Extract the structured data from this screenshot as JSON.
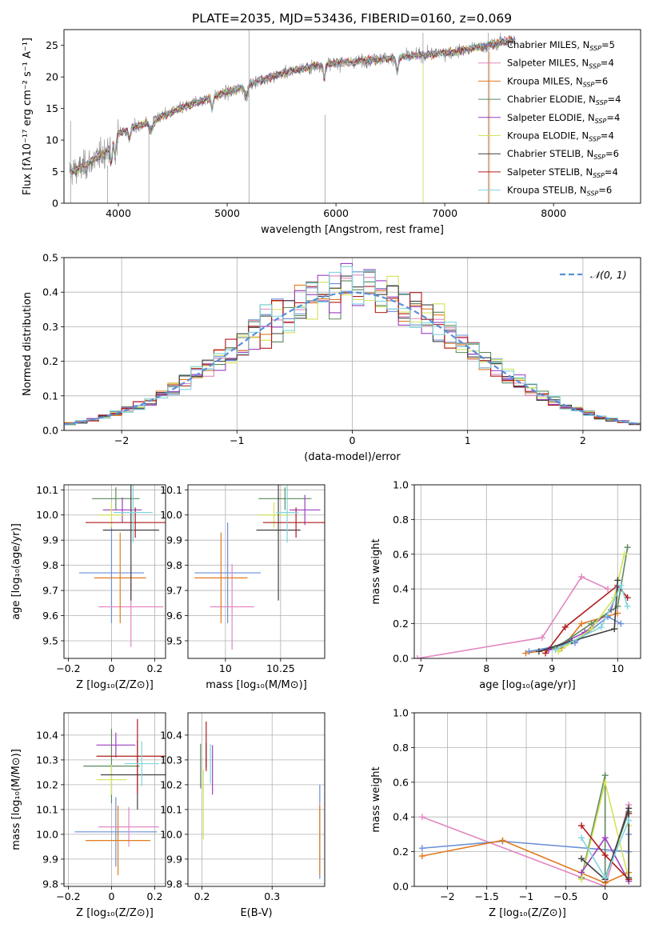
{
  "figure_title": "PLATE=2035, MJD=53436, FIBERID=0160, z=0.069",
  "colors": {
    "Chabrier MILES": "#6a8fd8",
    "Salpeter MILES": "#e287c0",
    "Kroupa MILES": "#e07b1f",
    "Chabrier ELODIE": "#5c8a5c",
    "Salpeter ELODIE": "#9b3fc0",
    "Kroupa ELODIE": "#d4e25a",
    "Chabrier STELIB": "#404040",
    "Salpeter STELIB": "#b01c1c",
    "Kroupa STELIB": "#7ed6dd",
    "data": "#7f7f7f",
    "gaussian": "#5b8ed8"
  },
  "chart_data": [
    {
      "id": "spectrum",
      "type": "line",
      "title": "PLATE=2035, MJD=53436, FIBERID=0160, z=0.069",
      "xlabel": "wavelength [Angstrom, rest frame]",
      "ylabel": "Flux [fλ10⁻¹⁷ erg cm⁻² s⁻¹ A⁻¹]",
      "xlim": [
        3500,
        8800
      ],
      "ylim": [
        0,
        27.5
      ],
      "xticks": [
        4000,
        5000,
        6000,
        7000,
        8000
      ],
      "yticks": [
        0,
        5,
        10,
        15,
        20,
        25
      ],
      "grid": false,
      "legend_position": "upper-right",
      "legend": [
        {
          "name": "Chabrier MILES",
          "sub": "SSP",
          "n": "5"
        },
        {
          "name": "Salpeter MILES",
          "sub": "SSP",
          "n": "4"
        },
        {
          "name": "Kroupa MILES",
          "sub": "SSP",
          "n": "6"
        },
        {
          "name": "Chabrier ELODIE",
          "sub": "SSP",
          "n": "4"
        },
        {
          "name": "Salpeter ELODIE",
          "sub": "SSP",
          "n": "4"
        },
        {
          "name": "Kroupa ELODIE",
          "sub": "SSP",
          "n": "4"
        },
        {
          "name": "Chabrier STELIB",
          "sub": "SSP",
          "n": "6"
        },
        {
          "name": "Salpeter STELIB",
          "sub": "SSP",
          "n": "4"
        },
        {
          "name": "Kroupa STELIB",
          "sub": "SSP",
          "n": "6"
        }
      ],
      "continuum_anchors": {
        "x": [
          3550,
          3650,
          3750,
          3900,
          4000,
          4100,
          4300,
          4500,
          4800,
          5000,
          5300,
          5600,
          5900,
          6200,
          6500,
          6800,
          7100,
          7400,
          7600
        ],
        "y": [
          5.0,
          5.5,
          6.5,
          8.5,
          11.0,
          11.8,
          13.0,
          14.5,
          16.5,
          17.5,
          19.5,
          21.0,
          22.0,
          22.5,
          23.0,
          23.5,
          24.0,
          25.0,
          25.8
        ]
      }
    },
    {
      "id": "residuals",
      "type": "histogram",
      "xlabel": "(data-model)/error",
      "ylabel": "Normed distribution",
      "xlim": [
        -2.5,
        2.5
      ],
      "ylim": [
        0,
        0.5
      ],
      "xticks": [
        -2,
        -1,
        0,
        1,
        2
      ],
      "yticks": [
        0.0,
        0.1,
        0.2,
        0.3,
        0.4,
        0.5
      ],
      "grid": true,
      "legend_position": "upper-right",
      "legend": [
        "𝒩(0, 1)"
      ],
      "bin_width": 0.1,
      "bin_start": -2.5
    },
    {
      "id": "age-vs-Z",
      "type": "errorbar",
      "xlabel": "Z [log₁₀(Z/Z⊙)]",
      "ylabel": "age [log₁₀(age/yr)]",
      "xlim": [
        -0.22,
        0.25
      ],
      "ylim": [
        9.43,
        10.12
      ],
      "xticks": [
        -0.2,
        0.0,
        0.2
      ],
      "yticks": [
        9.5,
        9.6,
        9.7,
        9.8,
        9.9,
        10.0,
        10.1
      ],
      "grid": true,
      "points": [
        {
          "model": "Chabrier MILES",
          "x": 0.0,
          "xerr": 0.15,
          "y": 9.77,
          "yerr": 0.2
        },
        {
          "model": "Salpeter MILES",
          "x": 0.09,
          "xerr": 0.15,
          "y": 9.635,
          "yerr": 0.16
        },
        {
          "model": "Kroupa MILES",
          "x": 0.04,
          "xerr": 0.12,
          "y": 9.75,
          "yerr": 0.18
        },
        {
          "model": "Chabrier ELODIE",
          "x": 0.02,
          "xerr": 0.11,
          "y": 10.065,
          "yerr": 0.045
        },
        {
          "model": "Salpeter ELODIE",
          "x": 0.05,
          "xerr": 0.09,
          "y": 10.02,
          "yerr": 0.05
        },
        {
          "model": "Kroupa ELODIE",
          "x": 0.0,
          "xerr": 0.06,
          "y": 10.0,
          "yerr": 0.05
        },
        {
          "model": "Chabrier STELIB",
          "x": 0.09,
          "xerr": 0.13,
          "y": 9.94,
          "yerr": 0.28
        },
        {
          "model": "Salpeter STELIB",
          "x": 0.11,
          "xerr": 0.23,
          "y": 9.97,
          "yerr": 0.06
        },
        {
          "model": "Kroupa STELIB",
          "x": 0.1,
          "xerr": 0.09,
          "y": 10.01,
          "yerr": 0.12
        }
      ]
    },
    {
      "id": "age-vs-mass",
      "type": "errorbar",
      "xlabel": "mass [log₁₀(M/M⊙)]",
      "ylabel": "",
      "xlim": [
        9.83,
        10.45
      ],
      "ylim": [
        9.43,
        10.12
      ],
      "xticks": [
        10.0,
        10.25
      ],
      "yticks": [
        9.5,
        9.6,
        9.7,
        9.8,
        9.9,
        10.0,
        10.1
      ],
      "grid": true,
      "points": [
        {
          "model": "Chabrier MILES",
          "x": 10.01,
          "xerr": 0.15,
          "y": 9.77,
          "yerr": 0.2
        },
        {
          "model": "Salpeter MILES",
          "x": 10.03,
          "xerr": 0.1,
          "y": 9.635,
          "yerr": 0.17
        },
        {
          "model": "Kroupa MILES",
          "x": 9.98,
          "xerr": 0.12,
          "y": 9.75,
          "yerr": 0.18
        },
        {
          "model": "Chabrier ELODIE",
          "x": 10.27,
          "xerr": 0.12,
          "y": 10.065,
          "yerr": 0.045
        },
        {
          "model": "Salpeter ELODIE",
          "x": 10.36,
          "xerr": 0.07,
          "y": 10.02,
          "yerr": 0.06
        },
        {
          "model": "Kroupa ELODIE",
          "x": 10.22,
          "xerr": 0.07,
          "y": 10.0,
          "yerr": 0.05
        },
        {
          "model": "Chabrier STELIB",
          "x": 10.24,
          "xerr": 0.1,
          "y": 9.94,
          "yerr": 0.28
        },
        {
          "model": "Salpeter STELIB",
          "x": 10.32,
          "xerr": 0.15,
          "y": 9.97,
          "yerr": 0.06
        },
        {
          "model": "Kroupa STELIB",
          "x": 10.28,
          "xerr": 0.05,
          "y": 10.01,
          "yerr": 0.12
        }
      ]
    },
    {
      "id": "weight-vs-age",
      "type": "line",
      "xlabel": "age [log₁₀(age/yr)]",
      "ylabel": "mass weight",
      "xlim": [
        6.9,
        10.35
      ],
      "ylim": [
        0,
        1.0
      ],
      "xticks": [
        7,
        8,
        9,
        10
      ],
      "yticks": [
        0.0,
        0.2,
        0.4,
        0.6,
        0.8,
        1.0
      ],
      "grid": true,
      "series": [
        {
          "model": "Salpeter MILES",
          "x": [
            6.95,
            8.85,
            9.45,
            9.85
          ],
          "y": [
            0.0,
            0.12,
            0.47,
            0.4
          ]
        },
        {
          "model": "Kroupa MILES",
          "x": [
            8.6,
            9.15,
            9.45,
            10.0
          ],
          "y": [
            0.03,
            0.06,
            0.2,
            0.26
          ]
        },
        {
          "model": "Chabrier MILES",
          "x": [
            8.65,
            9.35,
            9.85,
            10.05
          ],
          "y": [
            0.04,
            0.09,
            0.24,
            0.2
          ]
        },
        {
          "model": "Salpeter STELIB",
          "x": [
            8.9,
            9.2,
            10.0,
            10.15
          ],
          "y": [
            0.03,
            0.18,
            0.42,
            0.35
          ]
        },
        {
          "model": "Salpeter ELODIE",
          "x": [
            8.95,
            9.5,
            9.9,
            10.0
          ],
          "y": [
            0.05,
            0.15,
            0.28,
            0.41
          ]
        },
        {
          "model": "Chabrier ELODIE",
          "x": [
            9.05,
            9.6,
            10.0,
            10.15
          ],
          "y": [
            0.06,
            0.2,
            0.3,
            0.64
          ]
        },
        {
          "model": "Kroupa ELODIE",
          "x": [
            9.1,
            9.6,
            9.95,
            10.1
          ],
          "y": [
            0.04,
            0.17,
            0.35,
            0.6
          ]
        },
        {
          "model": "Chabrier STELIB",
          "x": [
            8.8,
            9.3,
            9.95,
            10.0
          ],
          "y": [
            0.04,
            0.1,
            0.17,
            0.45
          ]
        },
        {
          "model": "Kroupa STELIB",
          "x": [
            9.05,
            9.75,
            10.05,
            10.15
          ],
          "y": [
            0.05,
            0.18,
            0.42,
            0.3
          ]
        }
      ]
    },
    {
      "id": "mass-vs-Z",
      "type": "errorbar",
      "xlabel": "Z [log₁₀(Z/Z⊙)]",
      "ylabel": "mass [log₁₀(M/M⊙)]",
      "xlim": [
        -0.22,
        0.25
      ],
      "ylim": [
        9.79,
        10.49
      ],
      "xticks": [
        -0.2,
        0.0,
        0.2
      ],
      "yticks": [
        9.8,
        9.9,
        10.0,
        10.1,
        10.2,
        10.3,
        10.4
      ],
      "grid": true,
      "points": [
        {
          "model": "Chabrier MILES",
          "x": 0.02,
          "xerr": 0.19,
          "y": 10.01,
          "yerr": 0.14
        },
        {
          "model": "Salpeter MILES",
          "x": 0.08,
          "xerr": 0.14,
          "y": 10.03,
          "yerr": 0.08
        },
        {
          "model": "Kroupa MILES",
          "x": 0.03,
          "xerr": 0.15,
          "y": 9.975,
          "yerr": 0.14
        },
        {
          "model": "Chabrier ELODIE",
          "x": 0.0,
          "xerr": 0.13,
          "y": 10.275,
          "yerr": 0.15
        },
        {
          "model": "Salpeter ELODIE",
          "x": 0.02,
          "xerr": 0.09,
          "y": 10.36,
          "yerr": 0.05
        },
        {
          "model": "Kroupa ELODIE",
          "x": 0.0,
          "xerr": 0.07,
          "y": 10.22,
          "yerr": 0.06
        },
        {
          "model": "Chabrier STELIB",
          "x": 0.12,
          "xerr": 0.17,
          "y": 10.24,
          "yerr": 0.14
        },
        {
          "model": "Salpeter STELIB",
          "x": 0.12,
          "xerr": 0.19,
          "y": 10.315,
          "yerr": 0.15
        },
        {
          "model": "Kroupa STELIB",
          "x": 0.14,
          "xerr": 0.08,
          "y": 10.285,
          "yerr": 0.09
        }
      ]
    },
    {
      "id": "mass-vs-ebv",
      "type": "errorbar",
      "xlabel": "E(B-V)",
      "ylabel": "",
      "xlim": [
        0.18,
        0.375
      ],
      "ylim": [
        9.79,
        10.49
      ],
      "xticks": [
        0.2,
        0.3
      ],
      "yticks": [
        9.8,
        9.9,
        10.0,
        10.1,
        10.2,
        10.3,
        10.4
      ],
      "grid": true,
      "points": [
        {
          "model": "Chabrier MILES",
          "x": 0.368,
          "xerr": 0,
          "y": 10.01,
          "yerr": 0.19
        },
        {
          "model": "Salpeter MILES",
          "x": 0.368,
          "xerr": 0,
          "y": 10.03,
          "yerr": 0.1
        },
        {
          "model": "Kroupa MILES",
          "x": 0.368,
          "xerr": 0,
          "y": 9.975,
          "yerr": 0.14
        },
        {
          "model": "Chabrier ELODIE",
          "x": 0.198,
          "xerr": 0,
          "y": 10.275,
          "yerr": 0.09
        },
        {
          "model": "Salpeter ELODIE",
          "x": 0.215,
          "xerr": 0,
          "y": 10.26,
          "yerr": 0.1
        },
        {
          "model": "Kroupa ELODIE",
          "x": 0.202,
          "xerr": 0,
          "y": 10.12,
          "yerr": 0.14
        },
        {
          "model": "Chabrier STELIB",
          "x": 0.206,
          "xerr": 0,
          "y": 10.32,
          "yerr": 0.05
        },
        {
          "model": "Salpeter STELIB",
          "x": 0.206,
          "xerr": 0,
          "y": 10.355,
          "yerr": 0.1
        },
        {
          "model": "Kroupa STELIB",
          "x": 0.212,
          "xerr": 0,
          "y": 10.285,
          "yerr": 0.08
        }
      ]
    },
    {
      "id": "weight-vs-Z",
      "type": "line",
      "xlabel": "Z [log₁₀(Z/Z⊙)]",
      "ylabel": "mass weight",
      "xlim": [
        -2.42,
        0.45
      ],
      "ylim": [
        0,
        1.0
      ],
      "xticks": [
        -2.0,
        -1.5,
        -1.0,
        -0.5,
        0.0
      ],
      "yticks": [
        0.0,
        0.2,
        0.4,
        0.6,
        0.8,
        1.0
      ],
      "grid": true,
      "series": [
        {
          "model": "Salpeter MILES",
          "x": [
            -2.32,
            0.0,
            0.3,
            0.3
          ],
          "y": [
            0.4,
            0.0,
            0.47,
            0.04
          ]
        },
        {
          "model": "Chabrier MILES",
          "x": [
            -2.32,
            -1.3,
            0.3,
            0.3
          ],
          "y": [
            0.22,
            0.26,
            0.2,
            0.3
          ]
        },
        {
          "model": "Kroupa MILES",
          "x": [
            -2.32,
            -1.3,
            0.0,
            0.3
          ],
          "y": [
            0.175,
            0.265,
            0.02,
            0.08
          ]
        },
        {
          "model": "Chabrier ELODIE",
          "x": [
            -0.3,
            0.0,
            0.0,
            0.3
          ],
          "y": [
            0.05,
            0.64,
            0.05,
            0.43
          ]
        },
        {
          "model": "Kroupa ELODIE",
          "x": [
            -0.3,
            0.0,
            0.3,
            0.3
          ],
          "y": [
            0.04,
            0.6,
            0.04,
            0.35
          ]
        },
        {
          "model": "Salpeter ELODIE",
          "x": [
            -0.3,
            0.0,
            0.3
          ],
          "y": [
            0.08,
            0.28,
            0.03
          ]
        },
        {
          "model": "Salpeter STELIB",
          "x": [
            -0.3,
            0.0,
            0.3,
            0.3
          ],
          "y": [
            0.35,
            0.18,
            0.04,
            0.42
          ]
        },
        {
          "model": "Chabrier STELIB",
          "x": [
            -0.3,
            0.0,
            0.3,
            0.3
          ],
          "y": [
            0.16,
            0.04,
            0.45,
            0.05
          ]
        },
        {
          "model": "Kroupa STELIB",
          "x": [
            -0.3,
            0.0,
            0.3
          ],
          "y": [
            0.28,
            0.05,
            0.38
          ]
        }
      ]
    }
  ]
}
